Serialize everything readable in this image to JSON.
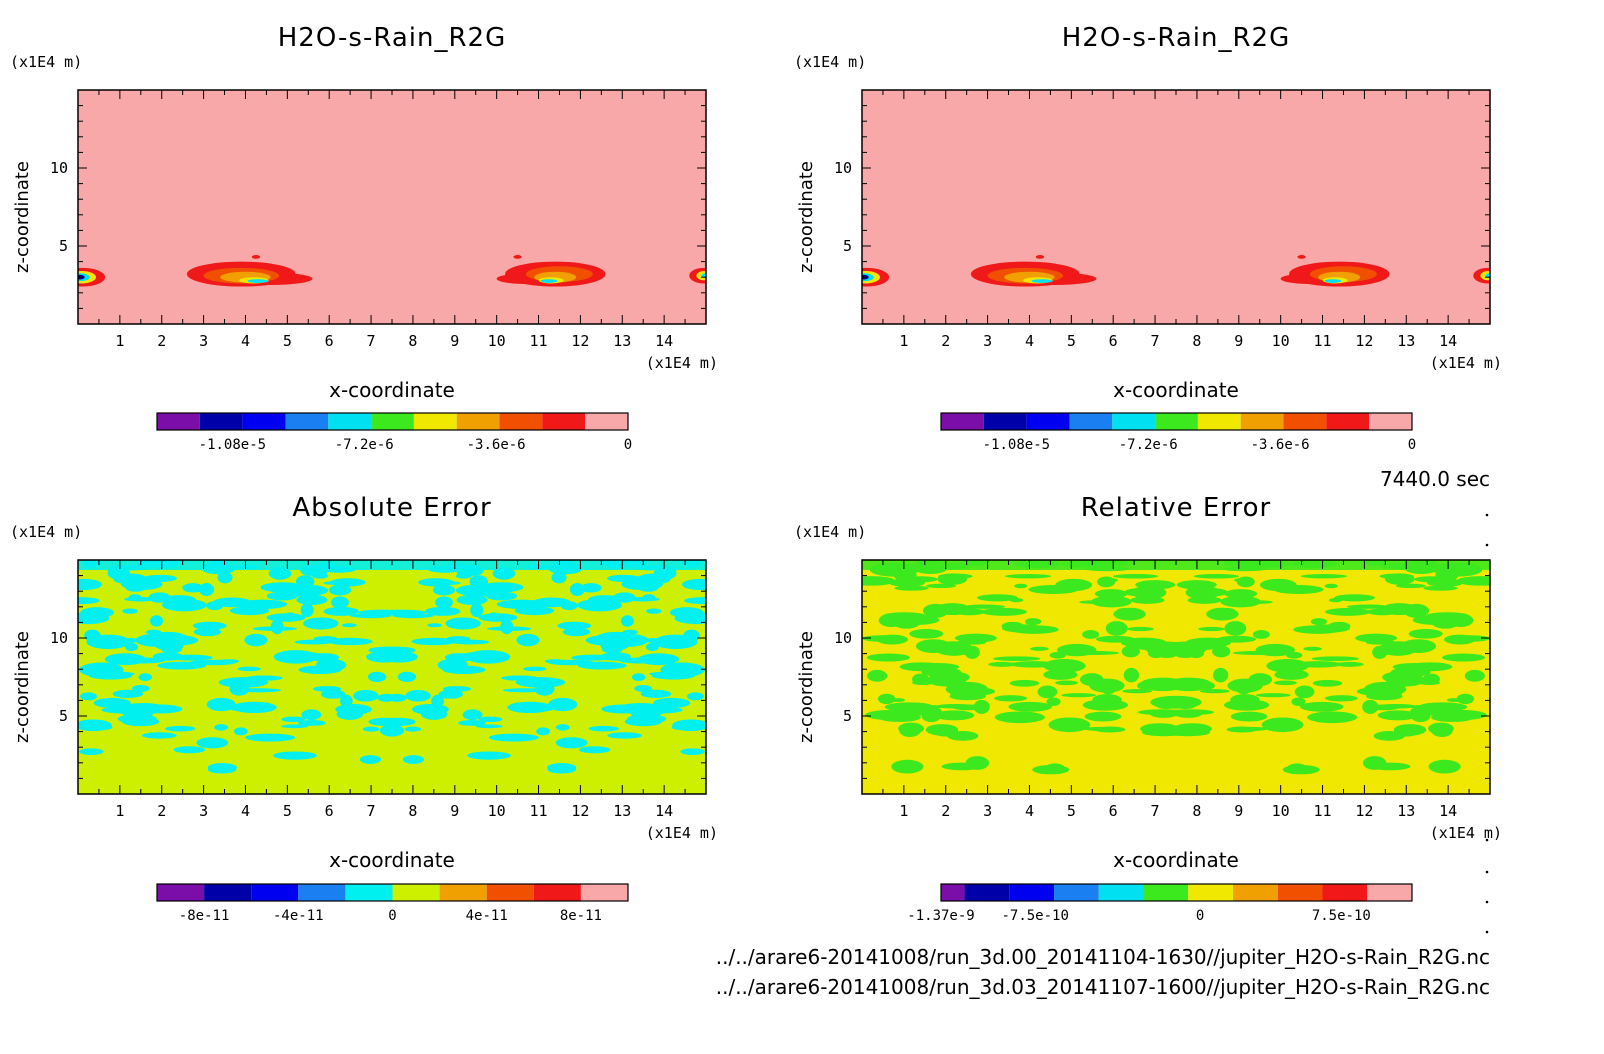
{
  "time_label": "7440.0 sec",
  "file_paths": [
    "../../arare6-20141008/run_3d.00_20141104-1630//jupiter_H2O-s-Rain_R2G.nc",
    "../../arare6-20141008/run_3d.03_20141107-1600//jupiter_H2O-s-Rain_R2G.nc"
  ],
  "chart_data": [
    {
      "type": "heatmap",
      "title": "H2O-s-Rain_R2G",
      "xlabel": "x-coordinate",
      "ylabel": "z-coordinate",
      "x_unit": "(x1E4 m)",
      "y_unit": "(x1E4 m)",
      "xlim": [
        0,
        15
      ],
      "ylim": [
        0,
        15
      ],
      "x_ticks": [
        1,
        2,
        3,
        4,
        5,
        6,
        7,
        8,
        9,
        10,
        11,
        12,
        13,
        14
      ],
      "y_ticks": [
        5,
        10
      ],
      "background_level": 0,
      "colorbar": {
        "colors": [
          "#7b0da8",
          "#0000a8",
          "#0000f0",
          "#1a7ff0",
          "#00e0f0",
          "#3ce81e",
          "#f0e800",
          "#f0a000",
          "#f05000",
          "#f01818",
          "#f8a8a8"
        ],
        "tick_values": [
          "-1.08e-5",
          "-7.2e-6",
          "-3.6e-6",
          "0"
        ]
      },
      "features": [
        {
          "x": 0.15,
          "z": 3.0,
          "value": -1.1e-05
        },
        {
          "x": 4.0,
          "z": 3.1,
          "value": -6e-06
        },
        {
          "x": 11.4,
          "z": 3.1,
          "value": -6e-06
        },
        {
          "x": 14.85,
          "z": 3.0,
          "value": -5e-06
        }
      ]
    },
    {
      "type": "heatmap",
      "title": "H2O-s-Rain_R2G",
      "xlabel": "x-coordinate",
      "ylabel": "z-coordinate",
      "x_unit": "(x1E4 m)",
      "y_unit": "(x1E4 m)",
      "xlim": [
        0,
        15
      ],
      "ylim": [
        0,
        15
      ],
      "x_ticks": [
        1,
        2,
        3,
        4,
        5,
        6,
        7,
        8,
        9,
        10,
        11,
        12,
        13,
        14
      ],
      "y_ticks": [
        5,
        10
      ],
      "background_level": 0,
      "colorbar": {
        "colors": [
          "#7b0da8",
          "#0000a8",
          "#0000f0",
          "#1a7ff0",
          "#00e0f0",
          "#3ce81e",
          "#f0e800",
          "#f0a000",
          "#f05000",
          "#f01818",
          "#f8a8a8"
        ],
        "tick_values": [
          "-1.08e-5",
          "-7.2e-6",
          "-3.6e-6",
          "0"
        ]
      },
      "features": [
        {
          "x": 0.15,
          "z": 3.0,
          "value": -1.1e-05
        },
        {
          "x": 4.0,
          "z": 3.1,
          "value": -6e-06
        },
        {
          "x": 11.4,
          "z": 3.1,
          "value": -6e-06
        },
        {
          "x": 14.85,
          "z": 3.0,
          "value": -5e-06
        }
      ]
    },
    {
      "type": "heatmap",
      "title": "Absolute Error",
      "xlabel": "x-coordinate",
      "ylabel": "z-coordinate",
      "x_unit": "(x1E4 m)",
      "y_unit": "(x1E4 m)",
      "xlim": [
        0,
        15
      ],
      "ylim": [
        0,
        15
      ],
      "x_ticks": [
        1,
        2,
        3,
        4,
        5,
        6,
        7,
        8,
        9,
        10,
        11,
        12,
        13,
        14
      ],
      "y_ticks": [
        5,
        10
      ],
      "base_color": "#ccf000",
      "pattern_color": "#00f0f0",
      "colorbar": {
        "colors": [
          "#7b0da8",
          "#0000a8",
          "#0000f0",
          "#1a7ff0",
          "#00f0f0",
          "#ccf000",
          "#f0a000",
          "#f05000",
          "#f01818",
          "#f8a8a8"
        ],
        "tick_values": [
          "-8e-11",
          "-4e-11",
          "0",
          "4e-11",
          "8e-11"
        ]
      }
    },
    {
      "type": "heatmap",
      "title": "Relative Error",
      "xlabel": "x-coordinate",
      "ylabel": "z-coordinate",
      "x_unit": "(x1E4 m)",
      "y_unit": "(x1E4 m)",
      "xlim": [
        0,
        15
      ],
      "ylim": [
        0,
        15
      ],
      "x_ticks": [
        1,
        2,
        3,
        4,
        5,
        6,
        7,
        8,
        9,
        10,
        11,
        12,
        13,
        14
      ],
      "y_ticks": [
        5,
        10
      ],
      "base_color": "#f0e800",
      "pattern_color": "#3ce81e",
      "colorbar": {
        "colors": [
          "#7b0da8",
          "#0000a8",
          "#0000f0",
          "#1a7ff0",
          "#00e0f0",
          "#3ce81e",
          "#f0e800",
          "#f0a000",
          "#f05000",
          "#f01818",
          "#f8a8a8"
        ],
        "tick_values": [
          "-1.37e-9",
          "-7.5e-10",
          "0",
          "7.5e-10"
        ]
      }
    }
  ]
}
